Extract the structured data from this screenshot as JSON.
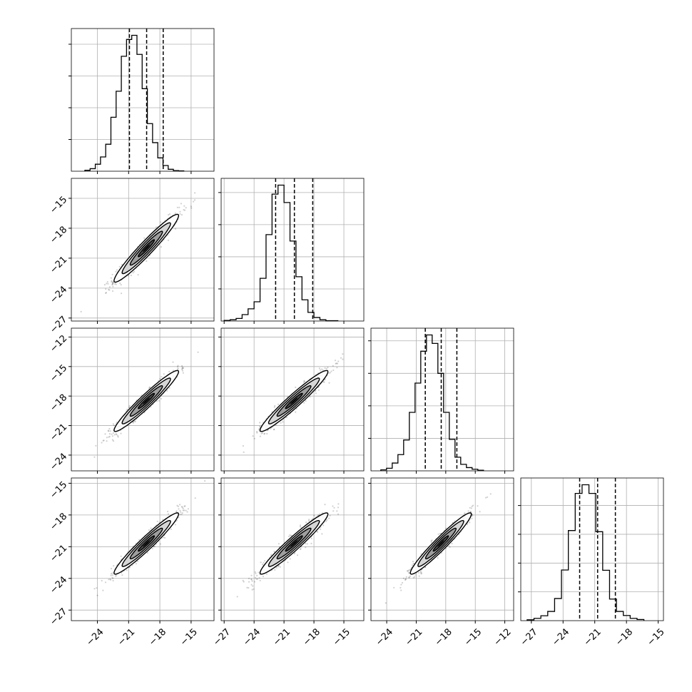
{
  "chart_data": {
    "type": "corner",
    "title": "",
    "grid": true,
    "dimensions": [
      {
        "name": "",
        "range": [
          -26.5,
          -12.8
        ],
        "ticks": [
          -24,
          -21,
          -18,
          -15
        ]
      },
      {
        "name": "",
        "range": [
          -27.3,
          -13.0
        ],
        "ticks": [
          -27,
          -24,
          -21,
          -18,
          -15
        ]
      },
      {
        "name": "",
        "range": [
          -25.6,
          -11.1
        ],
        "ticks": [
          -24,
          -21,
          -18,
          -15,
          -12
        ]
      },
      {
        "name": "",
        "range": [
          -28.0,
          -14.5
        ],
        "ticks": [
          -27,
          -24,
          -21,
          -18,
          -15
        ]
      }
    ],
    "histograms": [
      {
        "dim": 0,
        "bin_start": -25.2,
        "bin_width": 0.5,
        "counts": [
          3,
          8,
          22,
          45,
          85,
          170,
          252,
          362,
          415,
          428,
          368,
          260,
          150,
          90,
          42,
          18,
          6,
          2,
          1
        ],
        "quantiles": [
          -20.92,
          -19.27,
          -17.68
        ]
      },
      {
        "dim": 1,
        "bin_start": -27.0,
        "bin_width": 0.6,
        "counts": [
          2,
          4,
          8,
          20,
          38,
          60,
          133,
          269,
          395,
          423,
          369,
          249,
          138,
          66,
          27,
          11,
          4,
          1,
          1
        ],
        "quantiles": [
          -21.84,
          -19.96,
          -18.12
        ]
      },
      {
        "dim": 2,
        "bin_start": -24.6,
        "bin_width": 0.58,
        "counts": [
          3,
          8,
          24,
          50,
          95,
          180,
          270,
          368,
          418,
          392,
          300,
          180,
          97,
          42,
          20,
          10,
          5,
          2
        ],
        "quantiles": [
          -20.08,
          -18.46,
          -16.87
        ]
      },
      {
        "dim": 3,
        "bin_start": -27.4,
        "bin_width": 0.65,
        "counts": [
          3,
          8,
          17,
          32,
          77,
          176,
          313,
          442,
          472,
          442,
          309,
          175,
          75,
          32,
          18,
          8,
          4
        ],
        "quantiles": [
          -22.43,
          -20.73,
          -19.05
        ]
      }
    ],
    "pairs": [
      {
        "x_dim": 0,
        "y_dim": 1,
        "center": [
          -19.3,
          -20.0
        ]
      },
      {
        "x_dim": 0,
        "y_dim": 2,
        "center": [
          -19.3,
          -18.5
        ]
      },
      {
        "x_dim": 1,
        "y_dim": 2,
        "center": [
          -20.0,
          -18.5
        ]
      },
      {
        "x_dim": 0,
        "y_dim": 3,
        "center": [
          -19.3,
          -20.7
        ]
      },
      {
        "x_dim": 1,
        "y_dim": 3,
        "center": [
          -20.0,
          -20.7
        ]
      },
      {
        "x_dim": 2,
        "y_dim": 3,
        "center": [
          -18.5,
          -20.7
        ]
      }
    ]
  }
}
